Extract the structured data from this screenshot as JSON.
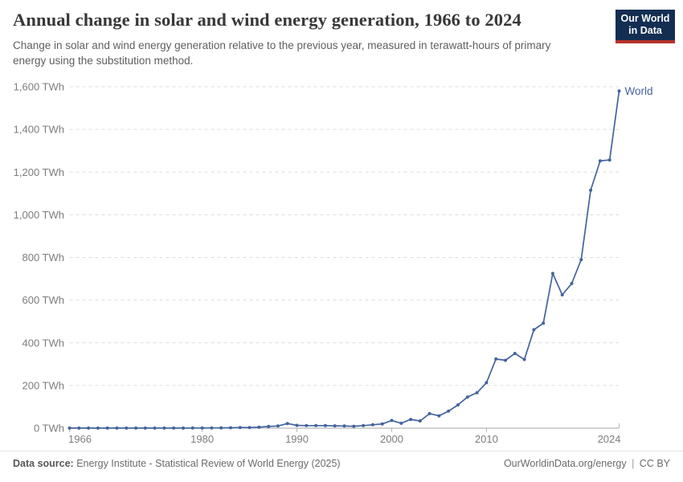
{
  "header": {
    "title": "Annual change in solar and wind energy generation, 1966 to 2024",
    "subtitle": "Change in solar and wind energy generation relative to the previous year, measured in terawatt-hours of primary energy using the substitution method.",
    "logo": {
      "line1": "Our World",
      "line2": "in Data"
    }
  },
  "chart_data": {
    "type": "line",
    "title": "Annual change in solar and wind energy generation, 1966 to 2024",
    "xlabel": "",
    "ylabel": "",
    "ylim": [
      0,
      1600
    ],
    "grid": "horizontal-dashed",
    "legend_position": "end-of-line",
    "line_color": "#44639d",
    "end_label": "World",
    "yticks": [
      {
        "value": 0,
        "label": "0 TWh"
      },
      {
        "value": 200,
        "label": "200 TWh"
      },
      {
        "value": 400,
        "label": "400 TWh"
      },
      {
        "value": 600,
        "label": "600 TWh"
      },
      {
        "value": 800,
        "label": "800 TWh"
      },
      {
        "value": 1000,
        "label": "1,000 TWh"
      },
      {
        "value": 1200,
        "label": "1,200 TWh"
      },
      {
        "value": 1400,
        "label": "1,400 TWh"
      },
      {
        "value": 1600,
        "label": "1,600 TWh"
      }
    ],
    "xticks": [
      1966,
      1980,
      1990,
      2000,
      2010,
      2024
    ],
    "series": [
      {
        "name": "World",
        "x": [
          1966,
          1967,
          1968,
          1969,
          1970,
          1971,
          1972,
          1973,
          1974,
          1975,
          1976,
          1977,
          1978,
          1979,
          1980,
          1981,
          1982,
          1983,
          1984,
          1985,
          1986,
          1987,
          1988,
          1989,
          1990,
          1991,
          1992,
          1993,
          1994,
          1995,
          1996,
          1997,
          1998,
          1999,
          2000,
          2001,
          2002,
          2003,
          2004,
          2005,
          2006,
          2007,
          2008,
          2009,
          2010,
          2011,
          2012,
          2013,
          2014,
          2015,
          2016,
          2017,
          2018,
          2019,
          2020,
          2021,
          2022,
          2023,
          2024
        ],
        "values": [
          0.3,
          0.3,
          0.3,
          0.3,
          0.3,
          0.3,
          0.3,
          0.3,
          0.3,
          0.3,
          0.4,
          0.5,
          0.5,
          0.8,
          0.8,
          1,
          1.5,
          2,
          3,
          3,
          5,
          8,
          10,
          22,
          13,
          12,
          12,
          12,
          11,
          10,
          9,
          12,
          16,
          20,
          36,
          23,
          41,
          34,
          68,
          58,
          80,
          109,
          146,
          166,
          213,
          324,
          318,
          350,
          322,
          461,
          492,
          725,
          625,
          678,
          790,
          1115,
          1253,
          1257,
          1580
        ]
      }
    ]
  },
  "footer": {
    "datasource_label": "Data source:",
    "datasource_text": " Energy Institute - Statistical Review of World Energy (2025)",
    "url": "OurWorldinData.org/energy",
    "separator": "|",
    "license": "CC BY"
  }
}
